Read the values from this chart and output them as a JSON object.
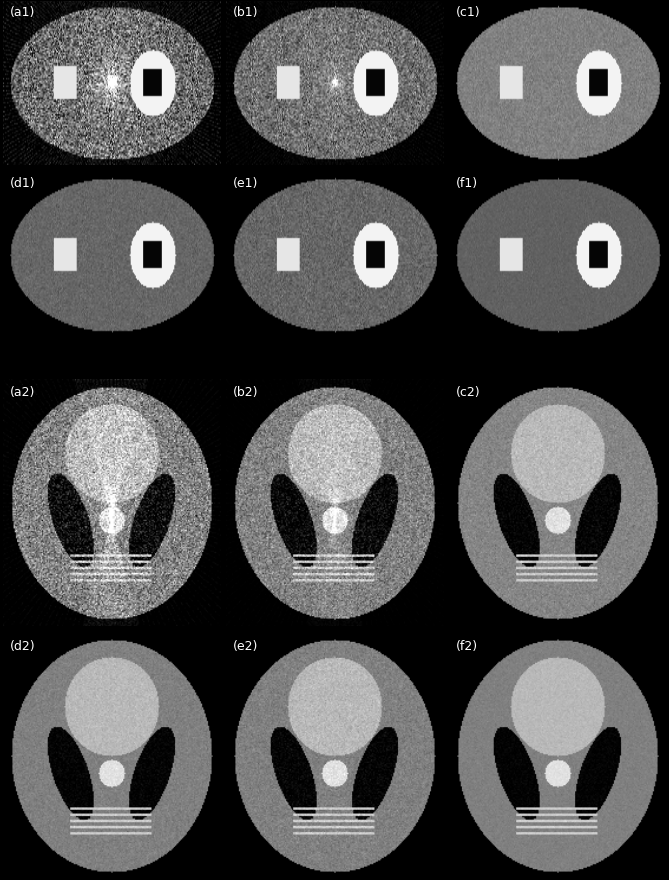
{
  "figure_width": 6.69,
  "figure_height": 8.8,
  "dpi": 100,
  "nrows": 4,
  "ncols": 3,
  "background_color": "#000000",
  "label_color": "#ffffff",
  "label_fontsize": 9,
  "labels": [
    [
      "(a1)",
      "(b1)",
      "(c1)"
    ],
    [
      "(d1)",
      "(e1)",
      "(f1)"
    ],
    [
      "(a2)",
      "(b2)",
      "(c2)"
    ],
    [
      "(d2)",
      "(e2)",
      "(f2)"
    ]
  ],
  "p1_noise": [
    0.2,
    0.13,
    0.04,
    0.035,
    0.055,
    0.02
  ],
  "p1_bg": [
    0.38,
    0.42,
    0.5,
    0.4,
    0.4,
    0.38
  ],
  "p1_streak": [
    1,
    1,
    0,
    0,
    0,
    0
  ],
  "p1_streak_strength": [
    0.18,
    0.07,
    0,
    0,
    0,
    0
  ],
  "p2_noise": [
    0.15,
    0.1,
    0.04,
    0.03,
    0.04,
    0.02
  ],
  "p2_bg": [
    0.5,
    0.5,
    0.52,
    0.5,
    0.5,
    0.5
  ],
  "p2_streak": [
    1,
    1,
    0,
    0,
    0,
    0
  ],
  "p2_streak_strength": [
    0.1,
    0.04,
    0,
    0,
    0,
    0
  ]
}
